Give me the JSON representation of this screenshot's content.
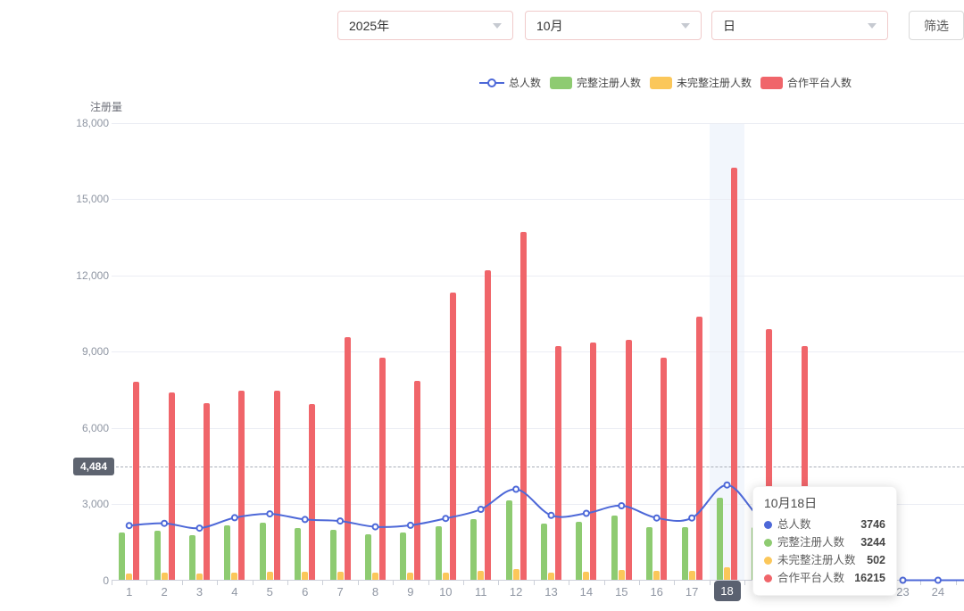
{
  "filters": {
    "year": "2025年",
    "month": "10月",
    "unit": "日",
    "filter_button": "筛选"
  },
  "legend": {
    "items": [
      {
        "label": "总人数",
        "type": "line"
      },
      {
        "label": "完整注册人数",
        "type": "bar"
      },
      {
        "label": "未完整注册人数",
        "type": "bar"
      },
      {
        "label": "合作平台人数",
        "type": "bar"
      }
    ]
  },
  "chart_data": {
    "type": "bar",
    "ylabel": "注册量",
    "categories": [
      "1",
      "2",
      "3",
      "4",
      "5",
      "6",
      "7",
      "8",
      "9",
      "10",
      "11",
      "12",
      "13",
      "14",
      "15",
      "16",
      "17",
      "18",
      "19",
      "20",
      "21",
      "22",
      "23",
      "24"
    ],
    "ylim": [
      0,
      18000
    ],
    "y_ticks": [
      "0",
      "3,000",
      "6,000",
      "9,000",
      "12,000",
      "15,000",
      "18,000"
    ],
    "grid": true,
    "legend_position": "top",
    "highlighted_category": "18",
    "markline": {
      "value": 4484,
      "label": "4,484"
    },
    "series": [
      {
        "key": "total",
        "name": "总人数",
        "type": "line",
        "color": "#4d68d8",
        "values": [
          2150,
          2240,
          2050,
          2460,
          2610,
          2390,
          2330,
          2100,
          2160,
          2430,
          2790,
          3580,
          2550,
          2630,
          2930,
          2450,
          2450,
          3746,
          2400,
          2200,
          null,
          null,
          0,
          0
        ]
      },
      {
        "key": "complete",
        "name": "完整注册人数",
        "type": "bar",
        "color": "#8ecb71",
        "values": [
          1870,
          1940,
          1780,
          2160,
          2280,
          2070,
          2000,
          1810,
          1870,
          2120,
          2420,
          3130,
          2240,
          2300,
          2530,
          2090,
          2080,
          3244,
          2100,
          1900,
          null,
          null,
          0,
          0
        ]
      },
      {
        "key": "incomplete",
        "name": "未完整注册人数",
        "type": "bar",
        "color": "#fbc75a",
        "values": [
          280,
          300,
          270,
          300,
          330,
          320,
          330,
          290,
          290,
          310,
          370,
          450,
          310,
          330,
          400,
          360,
          370,
          502,
          300,
          300,
          null,
          null,
          0,
          0
        ]
      },
      {
        "key": "platform",
        "name": "合作平台人数",
        "type": "bar",
        "color": "#f0656a",
        "values": [
          7800,
          7400,
          6960,
          7470,
          7450,
          6920,
          9580,
          8740,
          7850,
          11310,
          12210,
          13720,
          9220,
          9370,
          9460,
          8770,
          10360,
          16215,
          9870,
          9200,
          null,
          null,
          0,
          0
        ]
      }
    ]
  },
  "tooltip": {
    "title": "10月18日",
    "rows": [
      {
        "name": "总人数",
        "value": "3746",
        "color": "#4d68d8"
      },
      {
        "name": "完整注册人数",
        "value": "3244",
        "color": "#8ecb71"
      },
      {
        "name": "未完整注册人数",
        "value": "502",
        "color": "#fbc75a"
      },
      {
        "name": "合作平台人数",
        "value": "16215",
        "color": "#f0656a"
      }
    ]
  }
}
